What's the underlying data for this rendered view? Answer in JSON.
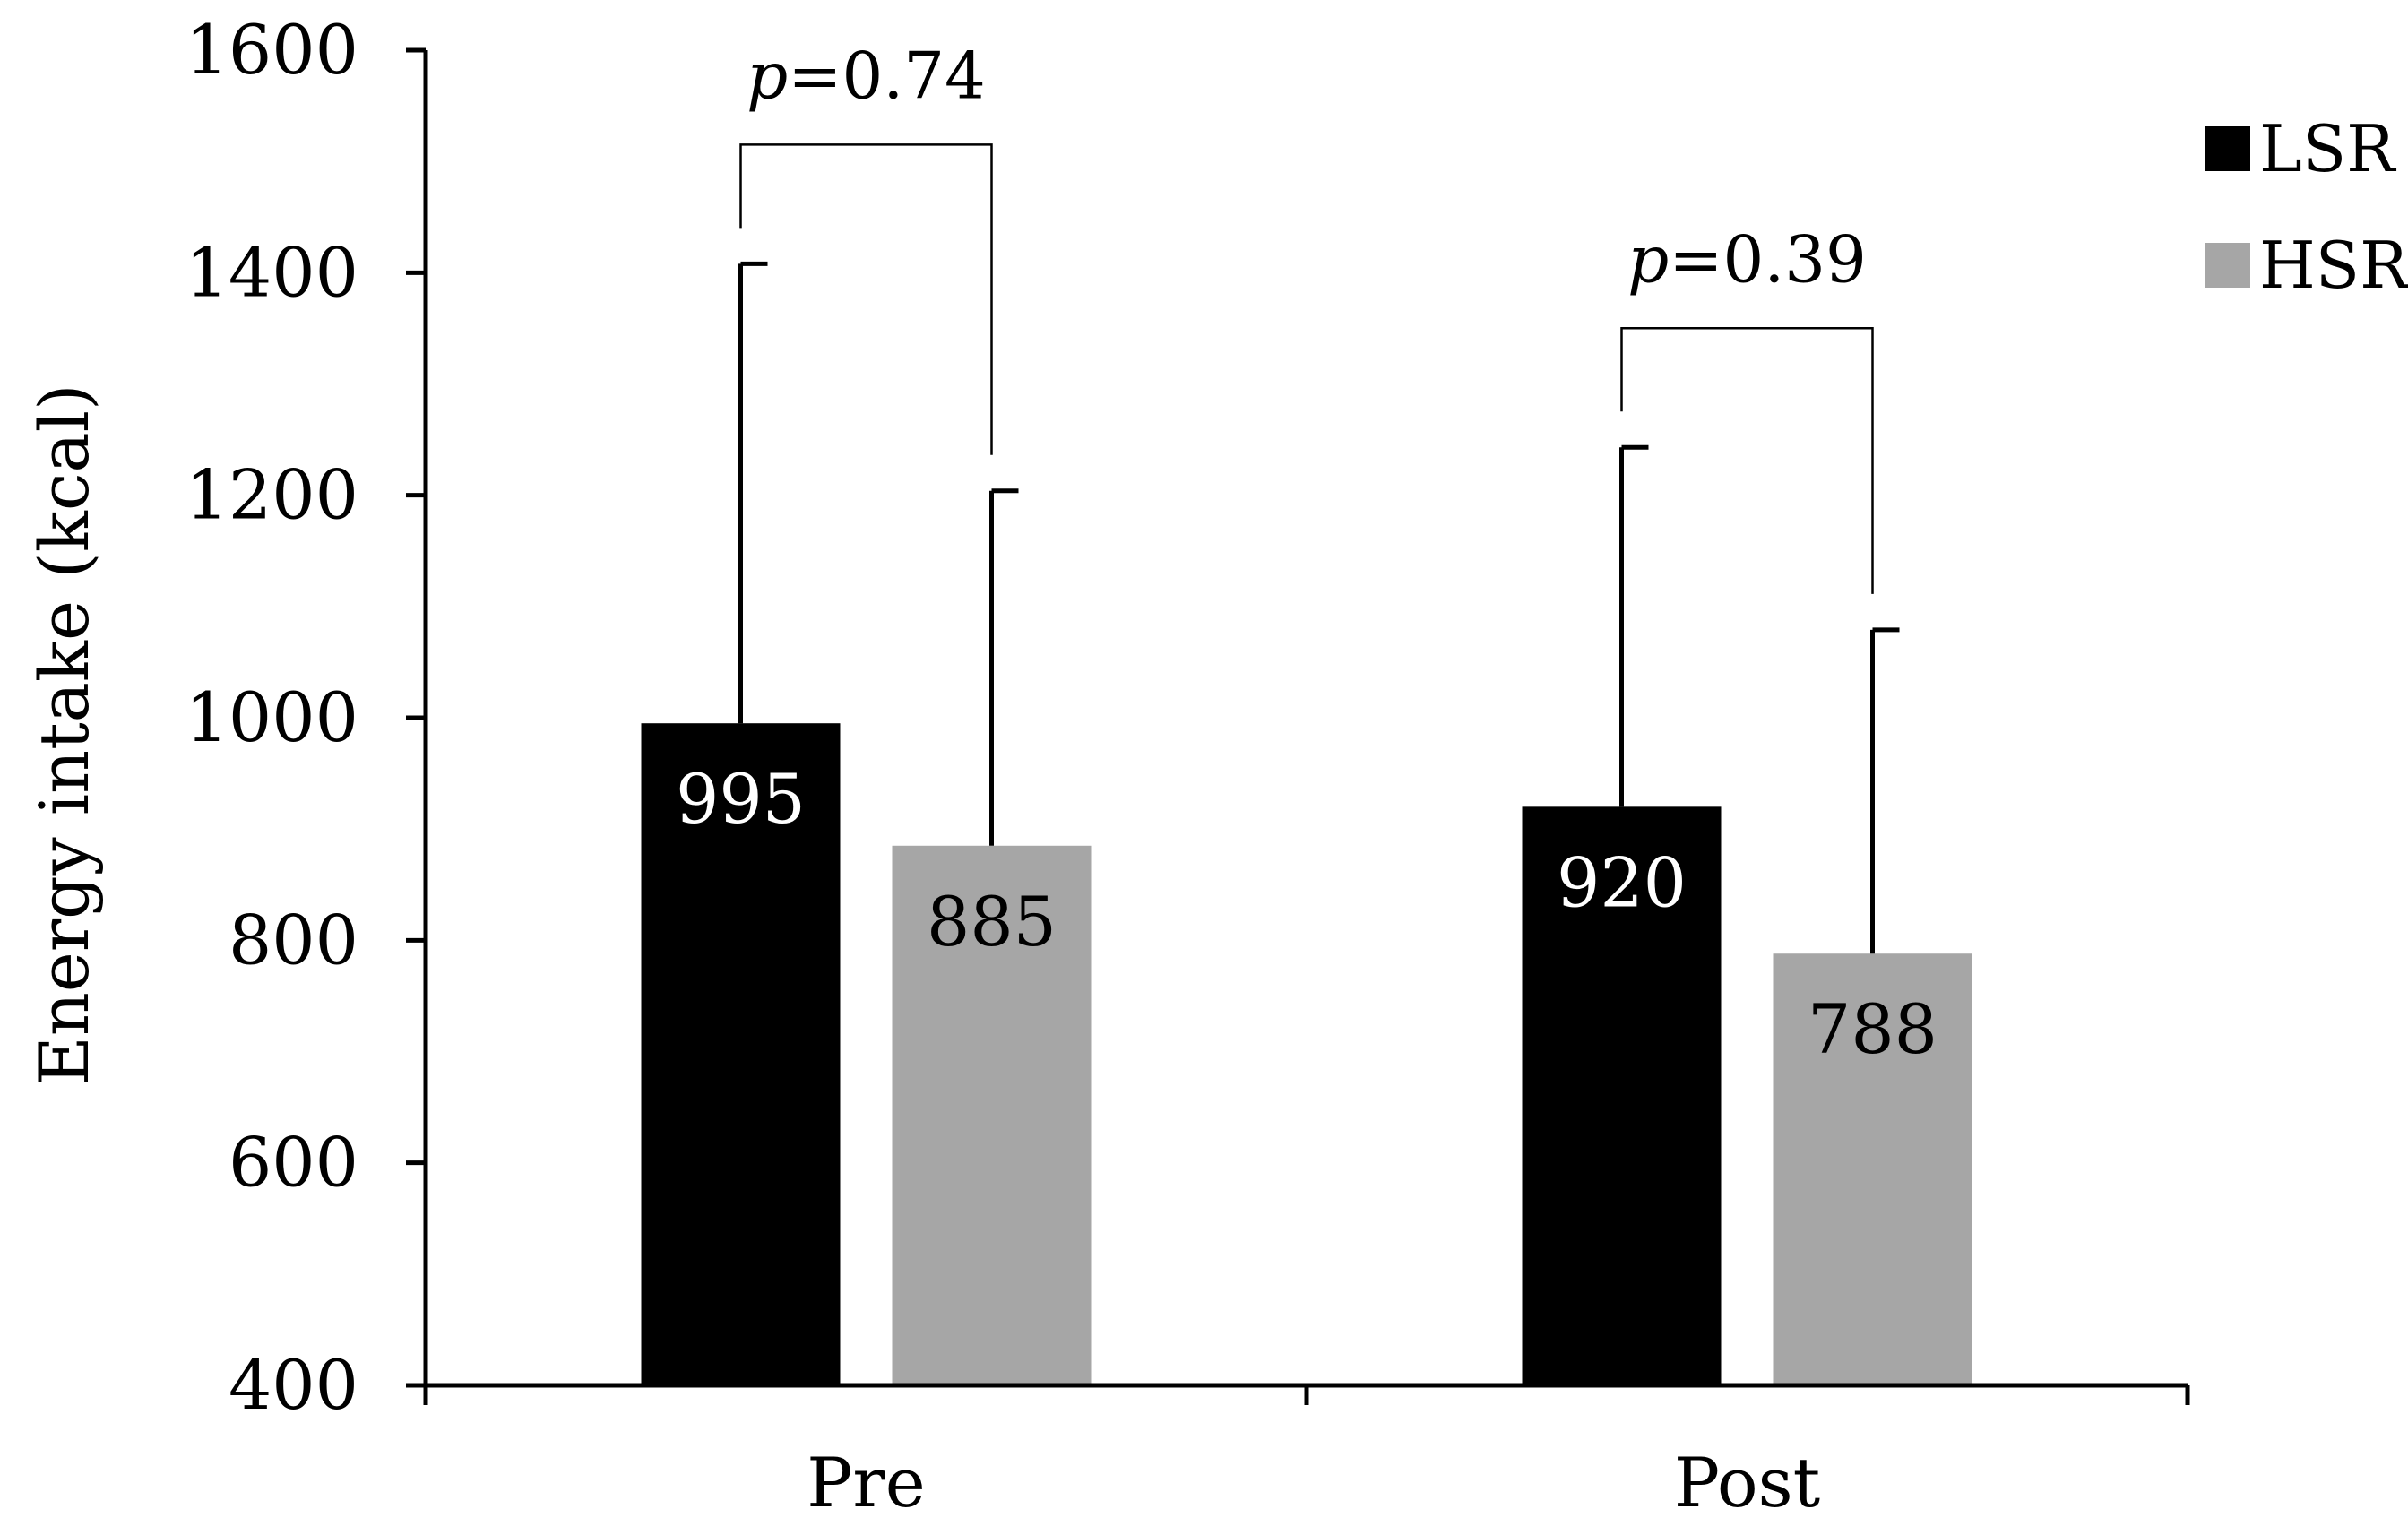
{
  "chart_data": {
    "type": "bar",
    "title": "",
    "xlabel": "",
    "ylabel": "Energy intake (kcal)",
    "ylim": [
      400,
      1600
    ],
    "yticks": [
      400,
      600,
      800,
      1000,
      1200,
      1400,
      1600
    ],
    "grid": false,
    "legend_position": "top-right",
    "categories": [
      "Pre",
      "Post"
    ],
    "series": [
      {
        "name": "LSR",
        "color": "#000000",
        "label_color": "#ffffff",
        "values": [
          995,
          920
        ],
        "error_upper": [
          1408,
          1243
        ],
        "value_labels": [
          "995",
          "920"
        ]
      },
      {
        "name": "HSR",
        "color": "#a6a6a6",
        "label_color": "#000000",
        "values": [
          885,
          788
        ],
        "error_upper": [
          1204,
          1079
        ],
        "value_labels": [
          "885",
          "788"
        ]
      }
    ],
    "annotations": [
      {
        "category": "Pre",
        "prefix": "p",
        "text": "=0.74"
      },
      {
        "category": "Post",
        "prefix": "p",
        "text": "=0.39"
      }
    ]
  }
}
